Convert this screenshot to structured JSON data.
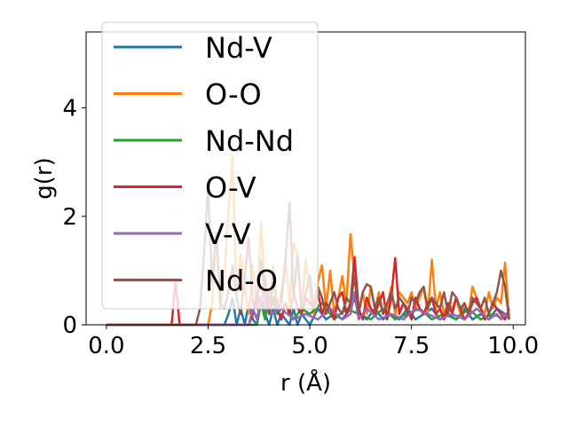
{
  "chart_data": {
    "type": "line",
    "xlabel": "r (Å)",
    "ylabel": "g(r)",
    "xlim": [
      -0.5,
      10.3
    ],
    "ylim": [
      0,
      5.4
    ],
    "xticks": [
      0.0,
      2.5,
      5.0,
      7.5,
      10.0
    ],
    "xtick_labels": [
      "0.0",
      "2.5",
      "5.0",
      "7.5",
      "10.0"
    ],
    "yticks": [
      0,
      2,
      4
    ],
    "ytick_labels": [
      "0",
      "2",
      "4"
    ],
    "grid": false,
    "legend_position": "upper-left",
    "series": [
      {
        "name": "Nd-V",
        "color": "#1f77b4",
        "x": [
          0,
          2.9,
          3.0,
          3.1,
          3.2,
          3.3,
          3.4,
          3.5,
          3.6,
          3.7,
          3.8,
          3.9,
          4.0,
          4.1,
          4.2,
          4.3,
          4.4,
          4.5,
          4.6,
          4.7,
          4.8,
          4.9,
          5.0,
          5.2,
          5.4,
          5.6,
          5.8,
          6.0,
          6.1,
          6.2,
          6.4,
          6.6,
          6.8,
          7.0,
          7.2,
          7.4,
          7.6,
          7.8,
          8.0,
          8.2,
          8.4,
          8.6,
          8.8,
          9.0,
          9.2,
          9.4,
          9.6,
          9.8
        ],
        "y": [
          0,
          0,
          0.2,
          0.5,
          0,
          0.3,
          0,
          0.4,
          0.1,
          0,
          0.5,
          0.2,
          0,
          0.3,
          0,
          0.2,
          0.1,
          0,
          0.3,
          0,
          0.2,
          0.1,
          0,
          0.3,
          0.1,
          0.2,
          0.1,
          0.3,
          0.5,
          0.2,
          0.1,
          0.3,
          0.1,
          0.2,
          0.1,
          0.3,
          0.1,
          0.2,
          0.3,
          0.1,
          0.2,
          0.1,
          0.3,
          0.1,
          0.2,
          0.1,
          0.3,
          0.2
        ]
      },
      {
        "name": "O-O",
        "color": "#ff7f0e",
        "x": [
          0,
          2.5,
          2.6,
          2.7,
          2.8,
          2.9,
          3.0,
          3.1,
          3.2,
          3.3,
          3.4,
          3.5,
          3.6,
          3.7,
          3.8,
          3.9,
          4.0,
          4.1,
          4.2,
          4.3,
          4.4,
          4.5,
          4.6,
          4.7,
          4.8,
          4.9,
          5.0,
          5.1,
          5.2,
          5.3,
          5.4,
          5.5,
          5.6,
          5.7,
          5.8,
          5.9,
          6.0,
          6.1,
          6.2,
          6.3,
          6.4,
          6.5,
          6.6,
          6.7,
          6.8,
          6.9,
          7.0,
          7.1,
          7.2,
          7.3,
          7.4,
          7.5,
          7.6,
          7.7,
          7.8,
          7.9,
          8.0,
          8.1,
          8.2,
          8.3,
          8.4,
          8.5,
          8.6,
          8.7,
          8.8,
          8.9,
          9.0,
          9.1,
          9.2,
          9.3,
          9.4,
          9.5,
          9.6,
          9.7,
          9.8,
          9.9
        ],
        "y": [
          0,
          0,
          0.4,
          1.7,
          0.3,
          0.9,
          2.1,
          3.1,
          0.5,
          1.3,
          0.7,
          0.2,
          1.1,
          0.3,
          1.9,
          0.6,
          0.4,
          1.1,
          0.3,
          0.6,
          1.2,
          0.4,
          1.5,
          1.3,
          0.3,
          1.2,
          0.6,
          0.2,
          0.8,
          1.1,
          0.3,
          1.0,
          0.2,
          0.5,
          0.9,
          0.4,
          1.67,
          0.9,
          0.2,
          0.6,
          0.2,
          0.7,
          0.3,
          0.6,
          0.2,
          0.3,
          0.7,
          0.2,
          0.6,
          0.5,
          0.4,
          0.6,
          0.3,
          0.5,
          0.7,
          0.2,
          1.2,
          0.3,
          0.6,
          0.2,
          0.4,
          0.3,
          0.5,
          0.2,
          0.4,
          0.2,
          0.7,
          0.5,
          0.3,
          0.2,
          0.6,
          0.3,
          0.5,
          0.4,
          1.15,
          0.1
        ]
      },
      {
        "name": "Nd-Nd",
        "color": "#2ca02c",
        "x": [
          0,
          3.7,
          3.8,
          3.9,
          4.0,
          4.2,
          4.4,
          4.6,
          4.8,
          5.0,
          5.3,
          5.6,
          5.9,
          6.2,
          6.5,
          6.8,
          7.1,
          7.4,
          7.7,
          8.0,
          8.3,
          8.6,
          8.9,
          9.2,
          9.5,
          9.8
        ],
        "y": [
          0,
          0,
          0.4,
          0.1,
          0.6,
          0.2,
          0.4,
          0.1,
          0.3,
          0.2,
          0.4,
          0.1,
          0.3,
          0.2,
          0.1,
          0.3,
          0.1,
          0.2,
          0.3,
          0.1,
          0.2,
          0.1,
          0.3,
          0.1,
          0.2,
          0.1
        ]
      },
      {
        "name": "O-V",
        "color": "#d62728",
        "x": [
          0,
          1.6,
          1.7,
          1.8,
          1.9,
          3.5,
          3.6,
          3.7,
          3.8,
          3.9,
          4.0,
          4.1,
          4.2,
          4.3,
          4.4,
          4.5,
          4.6,
          4.7,
          4.8,
          4.9,
          5.0,
          5.1,
          5.2,
          5.3,
          5.4,
          5.5,
          5.6,
          5.7,
          5.8,
          5.9,
          6.0,
          6.1,
          6.2,
          6.3,
          6.4,
          6.5,
          6.6,
          6.7,
          6.8,
          6.9,
          7.0,
          7.1,
          7.2,
          7.3,
          7.4,
          7.5,
          7.6,
          7.7,
          7.8,
          7.9,
          8.0,
          8.1,
          8.2,
          8.3,
          8.4,
          8.5,
          8.6,
          8.7,
          8.8,
          8.9,
          9.0,
          9.1,
          9.2,
          9.3,
          9.4,
          9.5,
          9.6,
          9.7,
          9.8,
          9.9
        ],
        "y": [
          0,
          0,
          0.8,
          0,
          0,
          0,
          0.2,
          0.6,
          0.3,
          0.9,
          0.2,
          0.5,
          0.3,
          0.1,
          0.4,
          0.2,
          0.6,
          0.3,
          0.2,
          0.5,
          0.4,
          0.3,
          0.6,
          0.2,
          0.4,
          0.3,
          0.1,
          0.5,
          0.6,
          0.2,
          0.4,
          1.25,
          0.3,
          0.1,
          0.5,
          0.3,
          0.2,
          0.4,
          0.6,
          0.1,
          0.5,
          1.23,
          0.2,
          0.4,
          0.3,
          0.1,
          0.5,
          0.3,
          0.2,
          0.4,
          0.5,
          0.2,
          0.3,
          0.1,
          0.4,
          0.2,
          0.5,
          0.3,
          0.1,
          0.2,
          0.4,
          0.5,
          0.3,
          0.1,
          0.2,
          0.4,
          0.3,
          0.2,
          0.1,
          0.3
        ]
      },
      {
        "name": "V-V",
        "color": "#9467bd",
        "x": [
          0,
          3.5,
          3.6,
          3.7,
          3.8,
          4.0,
          4.3,
          4.6,
          4.9,
          5.2,
          5.5,
          5.8,
          6.0,
          6.1,
          6.2,
          6.4,
          6.7,
          7.0,
          7.3,
          7.6,
          7.9,
          8.2,
          8.5,
          8.8,
          9.1,
          9.4,
          9.6,
          9.7,
          9.8,
          9.9
        ],
        "y": [
          0,
          0,
          0.3,
          0.1,
          0.5,
          0.2,
          0.3,
          0.1,
          0.2,
          0.1,
          0.3,
          0.1,
          0.2,
          0.6,
          0.1,
          0.3,
          0.1,
          0.2,
          0.1,
          0.3,
          0.2,
          0.1,
          0.2,
          0.1,
          0.3,
          0.1,
          0.2,
          0.1,
          0.2,
          0.1
        ]
      },
      {
        "name": "Nd-O",
        "color": "#8c564b",
        "x": [
          0,
          2.2,
          2.3,
          2.4,
          2.5,
          2.6,
          2.7,
          2.8,
          2.9,
          3.0,
          3.1,
          3.2,
          3.3,
          3.4,
          3.5,
          3.6,
          3.7,
          3.8,
          3.9,
          4.0,
          4.1,
          4.2,
          4.3,
          4.4,
          4.5,
          4.6,
          4.7,
          4.8,
          4.9,
          5.0,
          5.1,
          5.2,
          5.3,
          5.4,
          5.5,
          5.6,
          5.7,
          5.8,
          5.9,
          6.0,
          6.1,
          6.2,
          6.3,
          6.4,
          6.5,
          6.6,
          6.7,
          6.8,
          6.9,
          7.0,
          7.1,
          7.2,
          7.3,
          7.4,
          7.5,
          7.6,
          7.7,
          7.8,
          7.9,
          8.0,
          8.1,
          8.2,
          8.3,
          8.4,
          8.5,
          8.6,
          8.7,
          8.8,
          8.9,
          9.0,
          9.1,
          9.2,
          9.3,
          9.4,
          9.5,
          9.6,
          9.7,
          9.8,
          9.9
        ],
        "y": [
          0,
          0,
          0.3,
          1.3,
          2.55,
          0.8,
          1.7,
          0.4,
          0.3,
          0.6,
          1.1,
          0.5,
          0.2,
          0.9,
          1.6,
          0.4,
          0.3,
          1.2,
          0.5,
          0.2,
          0.8,
          0.3,
          0.4,
          1.2,
          2.25,
          0.5,
          1.3,
          0.2,
          0.6,
          0.9,
          0.3,
          0.7,
          0.5,
          0.2,
          0.4,
          0.6,
          0.3,
          0.2,
          0.5,
          0.4,
          0.9,
          0.2,
          0.6,
          0.75,
          0.7,
          0.3,
          0.5,
          0.2,
          0.4,
          0.6,
          0.3,
          0.5,
          0.4,
          0.2,
          0.5,
          0.4,
          0.6,
          0.7,
          0.3,
          0.5,
          0.4,
          0.3,
          0.6,
          0.2,
          0.6,
          0.5,
          0.3,
          0.4,
          0.2,
          0.5,
          0.4,
          0.3,
          0.5,
          0.2,
          0.4,
          0.6,
          1.0,
          0.7,
          0.1
        ]
      }
    ]
  }
}
